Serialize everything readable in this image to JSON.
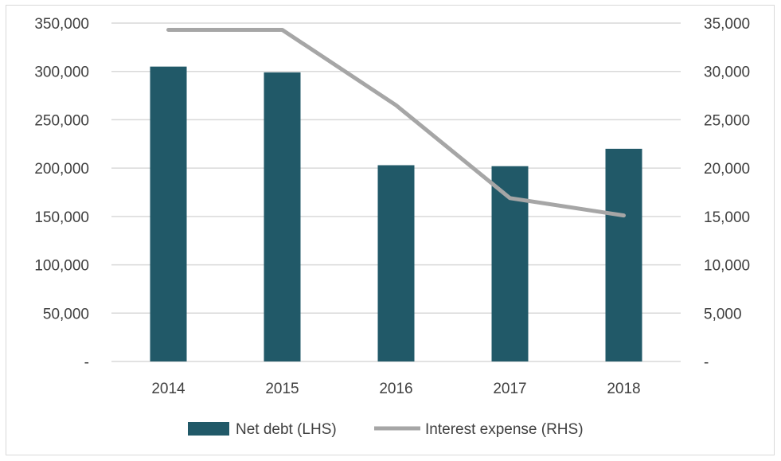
{
  "chart_data": {
    "type": "bar",
    "title": "",
    "categories": [
      "2014",
      "2015",
      "2016",
      "2017",
      "2018"
    ],
    "series": [
      {
        "name": "Net debt (LHS)",
        "kind": "bar",
        "axis": "left",
        "color": "#215968",
        "values": [
          305000,
          299000,
          203000,
          202000,
          220000
        ]
      },
      {
        "name": "Interest expense (RHS)",
        "kind": "line",
        "axis": "right",
        "color": "#a6a6a6",
        "values": [
          34300,
          34300,
          26500,
          16900,
          15100
        ]
      }
    ],
    "y_left": {
      "min": 0,
      "max": 350000,
      "ticks": [
        "-",
        "50,000",
        "100,000",
        "150,000",
        "200,000",
        "250,000",
        "300,000",
        "350,000"
      ]
    },
    "y_right": {
      "min": 0,
      "max": 35000,
      "ticks": [
        "-",
        "5,000",
        "10,000",
        "15,000",
        "20,000",
        "25,000",
        "30,000",
        "35,000"
      ]
    },
    "grid": true,
    "legend_position": "bottom",
    "gridline_color": "#d9d9d9"
  }
}
